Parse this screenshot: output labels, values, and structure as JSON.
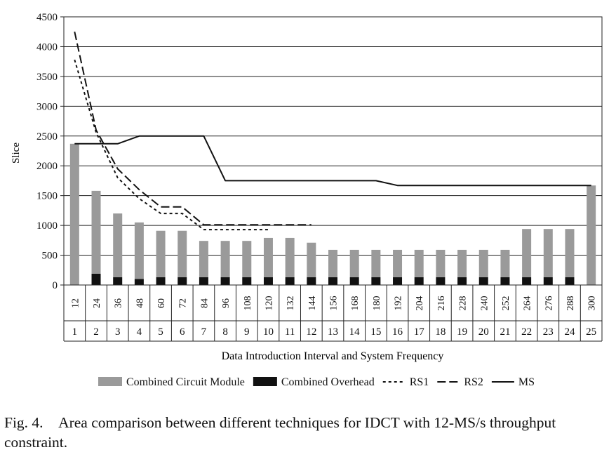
{
  "chart_data": {
    "type": "bar",
    "ylabel": "Slice",
    "xlabel": "Data Introduction Interval and System Frequency",
    "ylim": [
      0,
      4500
    ],
    "yticks": [
      0,
      500,
      1000,
      1500,
      2000,
      2500,
      3000,
      3500,
      4000,
      4500
    ],
    "grid": true,
    "legend_position": "bottom",
    "frequencies": [
      "12",
      "24",
      "36",
      "48",
      "60",
      "72",
      "84",
      "96",
      "108",
      "120",
      "132",
      "144",
      "156",
      "168",
      "180",
      "192",
      "204",
      "216",
      "228",
      "240",
      "252",
      "264",
      "276",
      "288",
      "300"
    ],
    "categories": [
      "1",
      "2",
      "3",
      "4",
      "5",
      "6",
      "7",
      "8",
      "9",
      "10",
      "11",
      "12",
      "13",
      "14",
      "15",
      "16",
      "17",
      "18",
      "19",
      "20",
      "21",
      "22",
      "23",
      "24",
      "25"
    ],
    "series": [
      {
        "name": "Combined Circuit Module",
        "kind": "bar",
        "color": "#9a9a9a",
        "values": [
          2370,
          1390,
          1070,
          950,
          780,
          780,
          610,
          610,
          610,
          660,
          660,
          580,
          460,
          460,
          460,
          460,
          460,
          460,
          460,
          460,
          460,
          810,
          810,
          810,
          1670
        ]
      },
      {
        "name": "Combined Overhead",
        "kind": "bar",
        "color": "#111111",
        "values": [
          0,
          190,
          130,
          100,
          130,
          130,
          130,
          130,
          130,
          130,
          130,
          130,
          130,
          130,
          130,
          130,
          130,
          130,
          130,
          130,
          130,
          130,
          130,
          130,
          0
        ]
      },
      {
        "name": "RS1",
        "kind": "line",
        "dash": "dotted",
        "values": [
          3780,
          2560,
          1800,
          1450,
          1200,
          1200,
          930,
          930,
          930,
          930,
          null,
          null,
          null,
          null,
          null,
          null,
          null,
          null,
          null,
          null,
          null,
          null,
          null,
          null,
          null
        ]
      },
      {
        "name": "RS2",
        "kind": "line",
        "dash": "dashed",
        "values": [
          4250,
          2600,
          1950,
          1600,
          1310,
          1310,
          1010,
          1010,
          1010,
          1010,
          1010,
          1010,
          null,
          null,
          null,
          null,
          null,
          null,
          null,
          null,
          null,
          null,
          null,
          null,
          null
        ]
      },
      {
        "name": "MS",
        "kind": "line",
        "dash": "solid",
        "values": [
          2370,
          2370,
          2370,
          2500,
          2500,
          2500,
          2500,
          1750,
          1750,
          1750,
          1750,
          1750,
          1750,
          1750,
          1750,
          1670,
          1670,
          1670,
          1670,
          1670,
          1670,
          1670,
          1670,
          1670,
          1670
        ]
      }
    ]
  },
  "caption": {
    "prefix": "Fig. 4.",
    "text": "Area comparison between different techniques for IDCT with 12-MS/s throughput constraint."
  }
}
